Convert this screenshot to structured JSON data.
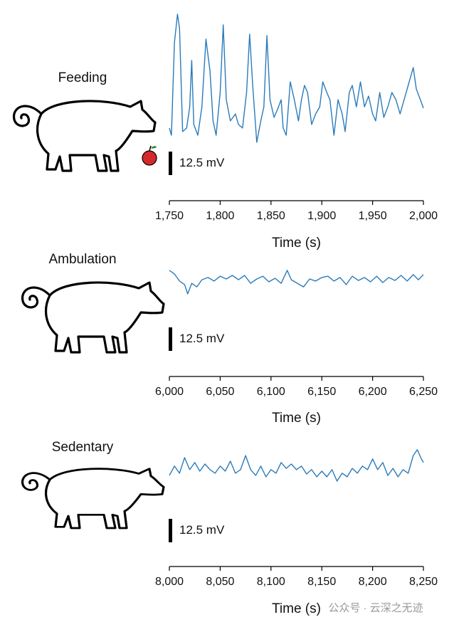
{
  "chart_data": [
    {
      "type": "line",
      "title": "Feeding",
      "xlabel": "Time (s)",
      "color": "#2b7bba",
      "scale_bar": {
        "value": 12.5,
        "label": "12.5 mV"
      },
      "xlim": [
        1750,
        2000
      ],
      "ylim": [
        0,
        72
      ],
      "xticks": [
        {
          "value": 1750,
          "label": "1,750"
        },
        {
          "value": 1800,
          "label": "1,800"
        },
        {
          "value": 1850,
          "label": "1,850"
        },
        {
          "value": 1900,
          "label": "1,900"
        },
        {
          "value": 1950,
          "label": "1,950"
        },
        {
          "value": 2000,
          "label": "2,000"
        }
      ],
      "x": [
        1750,
        1752,
        1755,
        1758,
        1760,
        1763,
        1767,
        1770,
        1772,
        1774,
        1778,
        1782,
        1786,
        1790,
        1793,
        1796,
        1800,
        1803,
        1806,
        1810,
        1815,
        1818,
        1822,
        1826,
        1829,
        1832,
        1836,
        1840,
        1843,
        1846,
        1849,
        1853,
        1856,
        1860,
        1862,
        1865,
        1869,
        1873,
        1877,
        1880,
        1883,
        1886,
        1890,
        1894,
        1898,
        1901,
        1905,
        1908,
        1912,
        1916,
        1920,
        1923,
        1927,
        1930,
        1934,
        1938,
        1942,
        1946,
        1950,
        1953,
        1957,
        1961,
        1965,
        1969,
        1973,
        1977,
        1981,
        1985,
        1990,
        1993,
        1997,
        2000
      ],
      "values": [
        9.5,
        5.7,
        54.9,
        70.1,
        62.5,
        7.6,
        9.5,
        20.8,
        45.5,
        11.4,
        5.7,
        20.8,
        56.8,
        39.8,
        13.3,
        5.7,
        28.4,
        64.4,
        24.6,
        13.3,
        17.0,
        11.4,
        9.5,
        28.4,
        59.5,
        32.2,
        1.9,
        13.3,
        20.8,
        58.7,
        24.6,
        15.2,
        18.9,
        24.6,
        9.5,
        5.7,
        34.1,
        24.6,
        13.3,
        24.6,
        32.2,
        28.4,
        11.4,
        17.0,
        20.8,
        34.1,
        28.4,
        24.6,
        5.7,
        24.6,
        17.0,
        7.6,
        28.4,
        32.2,
        20.8,
        34.1,
        20.8,
        26.5,
        17.0,
        13.3,
        28.4,
        15.2,
        20.8,
        28.4,
        24.6,
        17.0,
        24.6,
        32.2,
        41.7,
        30.3,
        24.6,
        20.1
      ]
    },
    {
      "type": "line",
      "title": "Ambulation",
      "xlabel": "Time (s)",
      "color": "#2b7bba",
      "scale_bar": {
        "value": 12.5,
        "label": "12.5 mV"
      },
      "xlim": [
        6000,
        6250
      ],
      "ylim": [
        0,
        20
      ],
      "xticks": [
        {
          "value": 6000,
          "label": "6,000"
        },
        {
          "value": 6050,
          "label": "6,050"
        },
        {
          "value": 6100,
          "label": "6,100"
        },
        {
          "value": 6150,
          "label": "6,150"
        },
        {
          "value": 6200,
          "label": "6,200"
        },
        {
          "value": 6250,
          "label": "6,250"
        }
      ],
      "x": [
        6000,
        6005,
        6010,
        6015,
        6018,
        6022,
        6027,
        6032,
        6038,
        6044,
        6050,
        6056,
        6062,
        6068,
        6074,
        6080,
        6086,
        6092,
        6098,
        6104,
        6110,
        6116,
        6120,
        6126,
        6132,
        6138,
        6144,
        6150,
        6156,
        6162,
        6168,
        6174,
        6180,
        6186,
        6192,
        6198,
        6204,
        6210,
        6216,
        6222,
        6228,
        6234,
        6240,
        6245,
        6250
      ],
      "values": [
        15.2,
        13.3,
        9.5,
        7.6,
        2.7,
        8.3,
        6.4,
        10.2,
        11.4,
        9.5,
        12.1,
        10.6,
        12.5,
        10.2,
        12.5,
        8.3,
        10.6,
        12.1,
        9.1,
        11.0,
        8.3,
        15.2,
        10.2,
        8.3,
        6.4,
        10.6,
        9.5,
        11.4,
        12.1,
        9.5,
        11.4,
        7.6,
        12.1,
        9.8,
        11.4,
        9.1,
        12.1,
        8.7,
        11.4,
        9.8,
        12.5,
        9.5,
        12.9,
        10.2,
        12.9
      ]
    },
    {
      "type": "line",
      "title": "Sedentary",
      "xlabel": "Time (s)",
      "color": "#2b7bba",
      "scale_bar": {
        "value": 12.5,
        "label": "12.5 mV"
      },
      "xlim": [
        8000,
        8250
      ],
      "ylim": [
        0,
        22
      ],
      "xticks": [
        {
          "value": 8000,
          "label": "8,000"
        },
        {
          "value": 8050,
          "label": "8,050"
        },
        {
          "value": 8100,
          "label": "8,100"
        },
        {
          "value": 8150,
          "label": "8,150"
        },
        {
          "value": 8200,
          "label": "8,200"
        },
        {
          "value": 8250,
          "label": "8,250"
        }
      ],
      "x": [
        8000,
        8005,
        8010,
        8015,
        8020,
        8025,
        8030,
        8035,
        8040,
        8045,
        8050,
        8055,
        8060,
        8065,
        8070,
        8075,
        8080,
        8085,
        8090,
        8095,
        8100,
        8105,
        8110,
        8115,
        8120,
        8125,
        8130,
        8135,
        8140,
        8145,
        8150,
        8155,
        8160,
        8165,
        8170,
        8175,
        8180,
        8185,
        8190,
        8195,
        8200,
        8205,
        8210,
        8215,
        8220,
        8225,
        8230,
        8235,
        8240,
        8244,
        8248,
        8250
      ],
      "values": [
        6.4,
        11.4,
        7.6,
        15.9,
        9.5,
        13.3,
        8.7,
        12.5,
        9.5,
        7.6,
        11.4,
        8.7,
        14.0,
        7.6,
        9.5,
        17.0,
        9.5,
        6.4,
        11.4,
        5.7,
        9.5,
        7.6,
        13.3,
        10.2,
        12.5,
        9.5,
        11.4,
        7.2,
        9.5,
        5.7,
        8.7,
        5.7,
        9.5,
        3.4,
        7.6,
        5.7,
        10.2,
        7.6,
        11.4,
        9.5,
        15.2,
        9.5,
        13.3,
        6.4,
        10.2,
        5.7,
        9.5,
        7.6,
        17.0,
        20.1,
        15.2,
        13.3
      ]
    }
  ],
  "watermark": "公众号 · 云深之无迹"
}
